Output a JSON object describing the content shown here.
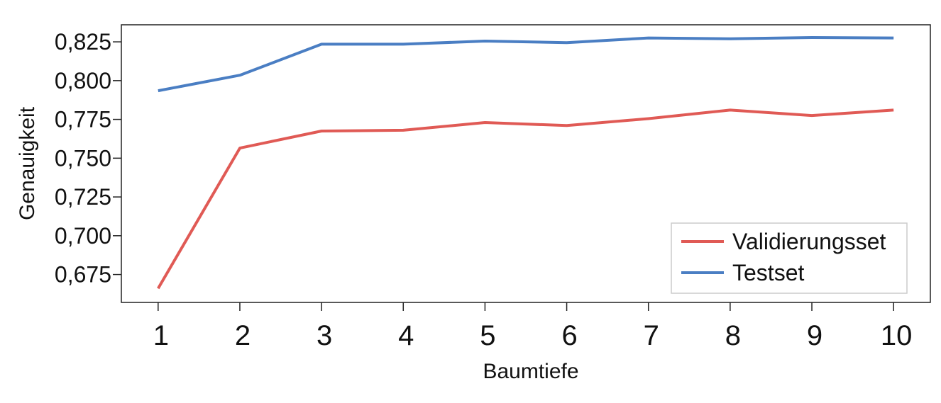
{
  "chart_data": {
    "type": "line",
    "title": "",
    "xlabel": "Baumtiefe",
    "ylabel": "Genauigkeit",
    "x": [
      1,
      2,
      3,
      4,
      5,
      6,
      7,
      8,
      9,
      10
    ],
    "x_tick_labels": [
      "1",
      "2",
      "3",
      "4",
      "5",
      "6",
      "7",
      "8",
      "9",
      "10"
    ],
    "y_ticks": [
      0.675,
      0.7,
      0.725,
      0.75,
      0.775,
      0.8,
      0.825
    ],
    "y_tick_labels": [
      "0,675",
      "0,700",
      "0,725",
      "0,750",
      "0,775",
      "0,800",
      "0,825"
    ],
    "xlim": [
      0.55,
      10.45
    ],
    "ylim": [
      0.657,
      0.836
    ],
    "grid": false,
    "legend_position": "bottom-right",
    "series": [
      {
        "name": "Validierungsset",
        "color": "#e05a55",
        "values": [
          0.666,
          0.7565,
          0.7675,
          0.768,
          0.773,
          0.771,
          0.7755,
          0.781,
          0.7775,
          0.781
        ]
      },
      {
        "name": "Testset",
        "color": "#4a7ec3",
        "values": [
          0.7935,
          0.8035,
          0.8235,
          0.8235,
          0.8255,
          0.8245,
          0.8275,
          0.827,
          0.8278,
          0.8275
        ]
      }
    ]
  }
}
